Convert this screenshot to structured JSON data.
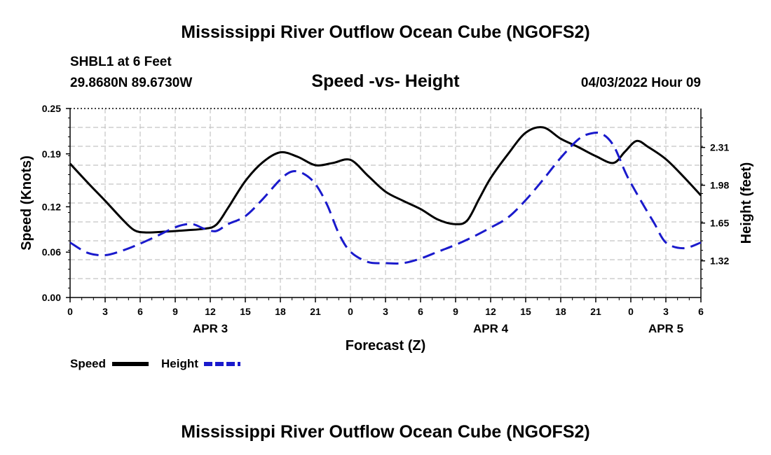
{
  "header": {
    "title": "Mississippi River Outflow Ocean Cube (NGOFS2)",
    "station": "SHBL1 at 6 Feet",
    "coords": "29.8680N  89.6730W",
    "subtitle": "Speed -vs- Height",
    "datetime": "04/03/2022 Hour 09"
  },
  "footer": {
    "title": "Mississippi River Outflow Ocean Cube (NGOFS2)"
  },
  "chart_data": {
    "type": "line",
    "title": "Speed -vs- Height",
    "xlabel": "Forecast (Z)",
    "ylabel": "Speed (Knots)",
    "y2label": "Height (feet)",
    "grid": true,
    "xlim": [
      0,
      54
    ],
    "x_ticks": [
      0,
      3,
      6,
      9,
      12,
      15,
      18,
      21,
      24,
      27,
      30,
      33,
      36,
      39,
      42,
      45,
      48,
      51,
      54
    ],
    "x_tick_labels": [
      "0",
      "3",
      "6",
      "9",
      "12",
      "15",
      "18",
      "21",
      "0",
      "3",
      "6",
      "9",
      "12",
      "15",
      "18",
      "21",
      "0",
      "3",
      "6"
    ],
    "day_labels": [
      {
        "label": "APR 3",
        "x": 12
      },
      {
        "label": "APR 4",
        "x": 36
      },
      {
        "label": "APR 5",
        "x": 51
      }
    ],
    "ylim": [
      0,
      0.25
    ],
    "y_ticks": [
      0.0,
      0.06,
      0.12,
      0.19,
      0.25
    ],
    "y_tick_labels": [
      "0.00",
      "0.06",
      "0.12",
      "0.19",
      "0.25"
    ],
    "y2lim": [
      1.0,
      2.65
    ],
    "y2_ticks": [
      1.32,
      1.65,
      1.98,
      2.31
    ],
    "y2_tick_labels": [
      "1.32",
      "1.65",
      "1.98",
      "2.31"
    ],
    "series": [
      {
        "name": "Speed",
        "axis": "left",
        "color": "#000000",
        "style": "solid",
        "x": [
          0,
          1.5,
          3,
          4.5,
          5.5,
          6.5,
          8,
          10,
          11.5,
          12.5,
          13.5,
          15,
          16.5,
          18,
          19.5,
          21,
          22.5,
          24,
          25.5,
          27,
          28.5,
          30,
          31.5,
          33,
          34,
          35,
          36,
          37.5,
          39,
          40.5,
          42,
          43.5,
          45,
          46.5,
          47.5,
          48.5,
          49.5,
          51,
          52.5,
          54
        ],
        "y": [
          0.177,
          0.152,
          0.128,
          0.103,
          0.089,
          0.086,
          0.087,
          0.089,
          0.091,
          0.096,
          0.118,
          0.154,
          0.179,
          0.192,
          0.186,
          0.175,
          0.178,
          0.182,
          0.161,
          0.14,
          0.128,
          0.117,
          0.103,
          0.097,
          0.102,
          0.13,
          0.158,
          0.19,
          0.218,
          0.225,
          0.21,
          0.199,
          0.187,
          0.178,
          0.193,
          0.207,
          0.199,
          0.183,
          0.16,
          0.135
        ]
      },
      {
        "name": "Height",
        "axis": "right",
        "color": "#1a1acc",
        "style": "dashed",
        "x": [
          0,
          1.5,
          3,
          4.5,
          6,
          7.5,
          8.5,
          9.5,
          10.5,
          11.5,
          12.5,
          13.5,
          15,
          16.5,
          18,
          19,
          20,
          21,
          22,
          23,
          24,
          25.5,
          27,
          28.5,
          30,
          31.5,
          33,
          34.5,
          36,
          37.5,
          39,
          40.5,
          42,
          43.5,
          44.5,
          45.5,
          46.5,
          47.5,
          48,
          49,
          50,
          51,
          52.5,
          54
        ],
        "y": [
          1.48,
          1.39,
          1.37,
          1.41,
          1.47,
          1.54,
          1.59,
          1.63,
          1.64,
          1.6,
          1.58,
          1.64,
          1.71,
          1.86,
          2.03,
          2.1,
          2.08,
          1.99,
          1.81,
          1.56,
          1.4,
          1.31,
          1.3,
          1.3,
          1.34,
          1.4,
          1.46,
          1.53,
          1.61,
          1.7,
          1.85,
          2.03,
          2.22,
          2.38,
          2.43,
          2.43,
          2.33,
          2.1,
          2.0,
          1.82,
          1.65,
          1.48,
          1.43,
          1.48
        ]
      }
    ],
    "legend": {
      "placement": "bottom-left",
      "entries": [
        "Speed",
        "Height"
      ]
    }
  }
}
